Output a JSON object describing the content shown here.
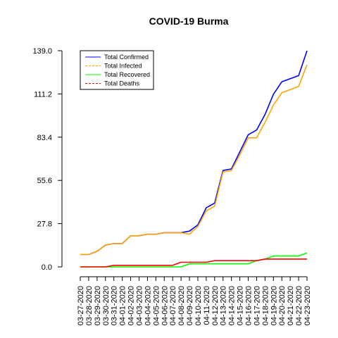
{
  "chart_data": {
    "type": "line",
    "title": "COVID-19 Burma",
    "xlabel": "",
    "ylabel": "",
    "ylim": [
      0,
      139
    ],
    "yticks": [
      "0.0",
      "27.8",
      "55.6",
      "83.4",
      "111.2",
      "139.0"
    ],
    "x": [
      "03-27-2020",
      "03-28-2020",
      "03-29-2020",
      "03-30-2020",
      "03-31-2020",
      "04-01-2020",
      "04-02-2020",
      "04-03-2020",
      "04-04-2020",
      "04-05-2020",
      "04-06-2020",
      "04-07-2020",
      "04-08-2020",
      "04-09-2020",
      "04-10-2020",
      "04-11-2020",
      "04-12-2020",
      "04-13-2020",
      "04-14-2020",
      "04-15-2020",
      "04-16-2020",
      "04-17-2020",
      "04-18-2020",
      "04-19-2020",
      "04-20-2020",
      "04-21-2020",
      "04-22-2020",
      "04-23-2020"
    ],
    "legend_position": "top-left",
    "series": [
      {
        "name": "Total Confirmed",
        "color": "#0000ff",
        "dash": "solid",
        "values": [
          8,
          8,
          10,
          14,
          15,
          15,
          20,
          20,
          21,
          21,
          22,
          22,
          22,
          23,
          27,
          38,
          41,
          62,
          63,
          74,
          85,
          88,
          98,
          111,
          119,
          121,
          123,
          139
        ]
      },
      {
        "name": "Total Infected",
        "color": "#ffa500",
        "dash": "dashed",
        "values": [
          8,
          8,
          10,
          14,
          15,
          15,
          20,
          20,
          21,
          21,
          22,
          22,
          22,
          21,
          26,
          36,
          39,
          61,
          62,
          72,
          83,
          83,
          93,
          104,
          112,
          114,
          116,
          130
        ]
      },
      {
        "name": "Total Recovered",
        "color": "#00ff00",
        "dash": "solid",
        "values": [
          0,
          0,
          0,
          0,
          0,
          0,
          0,
          0,
          0,
          0,
          0,
          0,
          0,
          2,
          2,
          2,
          2,
          2,
          2,
          2,
          2,
          4,
          5,
          7,
          7,
          7,
          7,
          9
        ]
      },
      {
        "name": "Total Deaths",
        "color": "#ff0000",
        "dash": "dashed",
        "values": [
          0,
          0,
          0,
          0,
          1,
          1,
          1,
          1,
          1,
          1,
          1,
          1,
          3,
          3,
          3,
          3,
          4,
          4,
          4,
          4,
          4,
          4,
          5,
          5,
          5,
          5,
          5,
          5
        ]
      }
    ]
  }
}
